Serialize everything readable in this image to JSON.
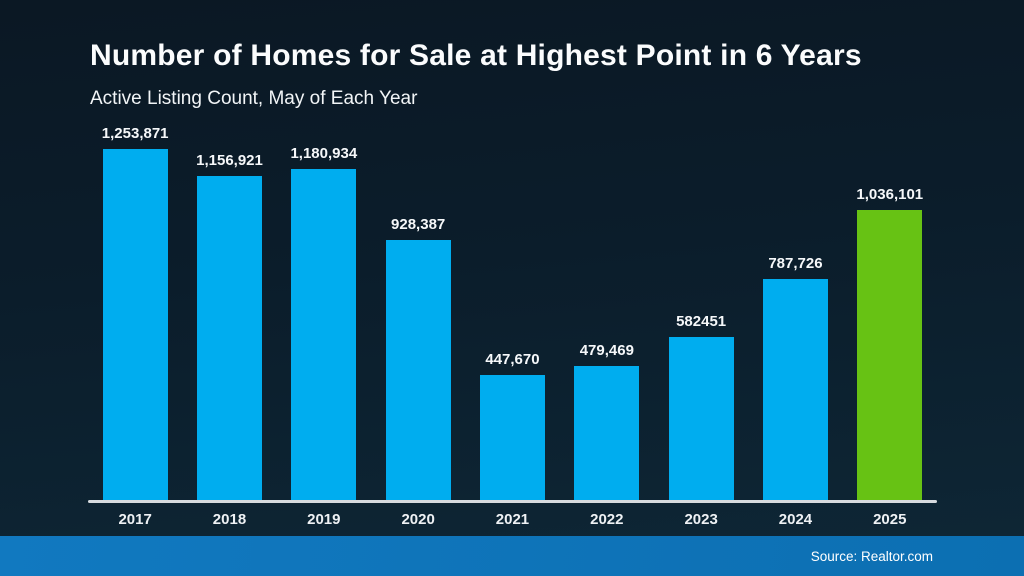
{
  "slide": {
    "title": "Number of Homes for Sale at Highest Point in 6 Years",
    "subtitle": "Active Listing Count, May of Each Year",
    "source": "Source: Realtor.com"
  },
  "colors": {
    "bar_blue": "#00ADEF",
    "bar_green": "#67C214",
    "axis_line": "#d7dbdf",
    "footer_left": "#1179c0",
    "footer_right": "#0c6fb2",
    "background_top": "#0b1824",
    "background_bottom": "#0e2736",
    "text": "#ffffff"
  },
  "chart_data": {
    "type": "bar",
    "title": "Number of Homes for Sale at Highest Point in 6 Years",
    "subtitle": "Active Listing Count, May of Each Year",
    "xlabel": "",
    "ylabel": "Active Listing Count",
    "categories": [
      "2017",
      "2018",
      "2019",
      "2020",
      "2021",
      "2022",
      "2023",
      "2024",
      "2025"
    ],
    "values": [
      1253871,
      1156921,
      1180934,
      928387,
      447670,
      479469,
      582451,
      787726,
      1036101
    ],
    "value_labels": [
      "1,253,871",
      "1,156,921",
      "1,180,934",
      "928,387",
      "447,670",
      "479,469",
      "582451",
      "787,726",
      "1,036,101"
    ],
    "highlight_index": 8,
    "ylim": [
      0,
      1253871
    ],
    "grid": false,
    "legend": false,
    "source": "Source: Realtor.com"
  }
}
